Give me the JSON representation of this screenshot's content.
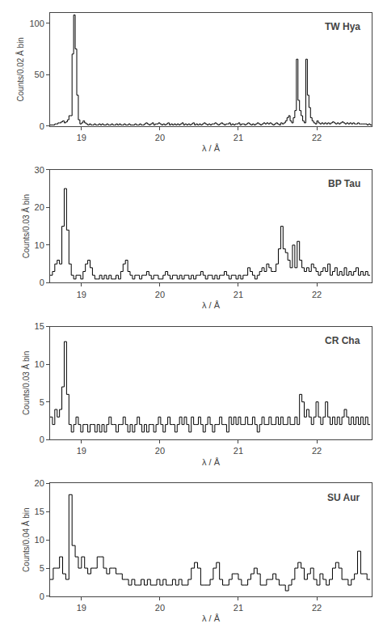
{
  "chart_data": [
    {
      "type": "histogram",
      "title": "TW Hya",
      "xlabel": "λ / Å",
      "ylabel": "Counts/0.02 Å bin",
      "color": "#000000",
      "grid": false,
      "xlim": [
        18.6,
        22.7
      ],
      "xticks": [
        19,
        20,
        21,
        22
      ],
      "ylim": [
        0,
        110
      ],
      "yticks": [
        0,
        50,
        100
      ],
      "bins": [
        18.6,
        18.62,
        18.64,
        18.66,
        18.68,
        18.7,
        18.72,
        18.74,
        18.76,
        18.78,
        18.8,
        18.82,
        18.84,
        18.86,
        18.88,
        18.9,
        18.92,
        18.94,
        18.96,
        18.98,
        19,
        19.02,
        19.04,
        19.06,
        19.08,
        19.1,
        19.12,
        19.14,
        19.16,
        19.18,
        19.2,
        19.22,
        19.24,
        19.26,
        19.28,
        19.3,
        19.32,
        19.34,
        19.36,
        19.38,
        19.4,
        19.42,
        19.44,
        19.46,
        19.48,
        19.5,
        19.52,
        19.54,
        19.56,
        19.58,
        19.6,
        19.62,
        19.64,
        19.66,
        19.68,
        19.7,
        19.72,
        19.74,
        19.76,
        19.78,
        19.8,
        19.82,
        19.84,
        19.86,
        19.88,
        19.9,
        19.92,
        19.94,
        19.96,
        19.98,
        20,
        20.02,
        20.04,
        20.06,
        20.08,
        20.1,
        20.12,
        20.14,
        20.16,
        20.18,
        20.2,
        20.22,
        20.24,
        20.26,
        20.28,
        20.3,
        20.32,
        20.34,
        20.36,
        20.38,
        20.4,
        20.42,
        20.44,
        20.46,
        20.48,
        20.5,
        20.52,
        20.54,
        20.56,
        20.58,
        20.6,
        20.62,
        20.64,
        20.66,
        20.68,
        20.7,
        20.72,
        20.74,
        20.76,
        20.78,
        20.8,
        20.82,
        20.84,
        20.86,
        20.88,
        20.9,
        20.92,
        20.94,
        20.96,
        20.98,
        21,
        21.02,
        21.04,
        21.06,
        21.08,
        21.1,
        21.12,
        21.14,
        21.16,
        21.18,
        21.2,
        21.22,
        21.24,
        21.26,
        21.28,
        21.3,
        21.32,
        21.34,
        21.36,
        21.38,
        21.4,
        21.42,
        21.44,
        21.46,
        21.48,
        21.5,
        21.52,
        21.54,
        21.56,
        21.58,
        21.6,
        21.62,
        21.64,
        21.66,
        21.68,
        21.7,
        21.72,
        21.74,
        21.76,
        21.78,
        21.8,
        21.82,
        21.84,
        21.86,
        21.88,
        21.9,
        21.92,
        21.94,
        21.96,
        21.98,
        22,
        22.02,
        22.04,
        22.06,
        22.08,
        22.1,
        22.12,
        22.14,
        22.16,
        22.18,
        22.2,
        22.22,
        22.24,
        22.26,
        22.28,
        22.3,
        22.32,
        22.34,
        22.36,
        22.38,
        22.4,
        22.42,
        22.44,
        22.46,
        22.48,
        22.5,
        22.52,
        22.54,
        22.56,
        22.58,
        22.6,
        22.62,
        22.64,
        22.66,
        22.68,
        22.7
      ],
      "values": [
        1,
        1,
        1,
        2,
        2,
        3,
        3,
        4,
        5,
        3,
        4,
        6,
        10,
        10,
        70,
        108,
        75,
        30,
        6,
        2,
        3,
        5,
        3,
        2,
        1,
        2,
        1,
        1,
        2,
        1,
        1,
        2,
        1,
        2,
        1,
        1,
        2,
        1,
        1,
        2,
        1,
        1,
        2,
        1,
        2,
        1,
        1,
        2,
        1,
        1,
        2,
        1,
        1,
        1,
        2,
        1,
        1,
        2,
        1,
        1,
        2,
        3,
        2,
        1,
        2,
        3,
        1,
        2,
        2,
        3,
        2,
        1,
        2,
        1,
        2,
        3,
        1,
        2,
        1,
        2,
        1,
        2,
        1,
        2,
        3,
        1,
        2,
        1,
        2,
        1,
        2,
        3,
        1,
        2,
        1,
        2,
        1,
        2,
        3,
        2,
        1,
        2,
        1,
        2,
        2,
        3,
        2,
        1,
        2,
        3,
        2,
        1,
        2,
        2,
        3,
        1,
        2,
        1,
        2,
        2,
        3,
        1,
        2,
        2,
        1,
        2,
        3,
        2,
        1,
        2,
        1,
        2,
        3,
        2,
        1,
        2,
        3,
        2,
        3,
        2,
        3,
        2,
        1,
        2,
        3,
        2,
        1,
        3,
        2,
        3,
        5,
        8,
        10,
        5,
        3,
        8,
        15,
        65,
        25,
        15,
        10,
        5,
        3,
        65,
        30,
        18,
        8,
        5,
        3,
        2,
        5,
        3,
        2,
        3,
        2,
        3,
        2,
        3,
        2,
        3,
        4,
        3,
        2,
        3,
        2,
        3,
        4,
        3,
        2,
        3,
        2,
        3,
        2,
        3,
        2,
        2,
        3,
        2,
        2,
        2,
        2,
        2,
        1,
        2,
        1
      ]
    },
    {
      "type": "histogram",
      "title": "BP Tau",
      "xlabel": "λ / Å",
      "ylabel": "Counts/0.03 Å bin",
      "color": "#000000",
      "grid": false,
      "xlim": [
        18.6,
        22.7
      ],
      "xticks": [
        19,
        20,
        21,
        22
      ],
      "ylim": [
        0,
        30
      ],
      "yticks": [
        0,
        10,
        20,
        30
      ],
      "bins": [
        18.6,
        18.63,
        18.66,
        18.69,
        18.72,
        18.75,
        18.78,
        18.81,
        18.84,
        18.87,
        18.9,
        18.93,
        18.96,
        18.99,
        19.02,
        19.05,
        19.08,
        19.11,
        19.14,
        19.17,
        19.2,
        19.23,
        19.26,
        19.29,
        19.32,
        19.35,
        19.38,
        19.41,
        19.44,
        19.47,
        19.5,
        19.53,
        19.56,
        19.59,
        19.62,
        19.65,
        19.68,
        19.71,
        19.74,
        19.77,
        19.8,
        19.83,
        19.86,
        19.89,
        19.92,
        19.95,
        19.98,
        20.01,
        20.04,
        20.07,
        20.1,
        20.13,
        20.16,
        20.19,
        20.22,
        20.25,
        20.28,
        20.31,
        20.34,
        20.37,
        20.4,
        20.43,
        20.46,
        20.49,
        20.52,
        20.55,
        20.58,
        20.61,
        20.64,
        20.67,
        20.7,
        20.73,
        20.76,
        20.79,
        20.82,
        20.85,
        20.88,
        20.91,
        20.94,
        20.97,
        21,
        21.03,
        21.06,
        21.09,
        21.12,
        21.15,
        21.18,
        21.21,
        21.24,
        21.27,
        21.3,
        21.33,
        21.36,
        21.39,
        21.42,
        21.45,
        21.48,
        21.51,
        21.54,
        21.57,
        21.6,
        21.63,
        21.66,
        21.69,
        21.72,
        21.75,
        21.78,
        21.81,
        21.84,
        21.87,
        21.9,
        21.93,
        21.96,
        21.99,
        22.02,
        22.05,
        22.08,
        22.11,
        22.14,
        22.17,
        22.2,
        22.23,
        22.26,
        22.29,
        22.32,
        22.35,
        22.38,
        22.41,
        22.44,
        22.47,
        22.5,
        22.53,
        22.56,
        22.59,
        22.62,
        22.65,
        22.68
      ],
      "values": [
        2,
        3,
        5,
        6,
        5,
        15,
        25,
        14,
        5,
        2,
        1,
        2,
        2,
        1,
        3,
        5,
        6,
        4,
        2,
        1,
        1,
        2,
        1,
        2,
        1,
        2,
        1,
        1,
        2,
        1,
        3,
        5,
        6,
        3,
        2,
        1,
        2,
        2,
        1,
        2,
        2,
        3,
        2,
        1,
        2,
        2,
        1,
        1,
        2,
        3,
        2,
        1,
        2,
        2,
        1,
        2,
        1,
        2,
        2,
        1,
        2,
        1,
        2,
        2,
        3,
        2,
        1,
        2,
        2,
        1,
        2,
        1,
        2,
        2,
        3,
        2,
        1,
        2,
        2,
        1,
        2,
        1,
        2,
        2,
        4,
        3,
        2,
        1,
        2,
        3,
        4,
        3,
        5,
        4,
        3,
        3,
        5,
        9,
        15,
        9,
        8,
        6,
        4,
        10,
        4,
        11,
        6,
        4,
        3,
        4,
        3,
        5,
        4,
        3,
        2,
        3,
        4,
        3,
        5,
        2,
        3,
        4,
        2,
        3,
        2,
        4,
        2,
        3,
        2,
        3,
        4,
        2,
        3,
        2,
        3,
        2
      ]
    },
    {
      "type": "histogram",
      "title": "CR Cha",
      "xlabel": "λ / Å",
      "ylabel": "Counts/0.03 Å bin",
      "color": "#000000",
      "grid": false,
      "xlim": [
        18.6,
        22.7
      ],
      "xticks": [
        19,
        20,
        21,
        22
      ],
      "ylim": [
        0,
        15
      ],
      "yticks": [
        0,
        5,
        10,
        15
      ],
      "bins": [
        18.6,
        18.63,
        18.66,
        18.69,
        18.72,
        18.75,
        18.78,
        18.81,
        18.84,
        18.87,
        18.9,
        18.93,
        18.96,
        18.99,
        19.02,
        19.05,
        19.08,
        19.11,
        19.14,
        19.17,
        19.2,
        19.23,
        19.26,
        19.29,
        19.32,
        19.35,
        19.38,
        19.41,
        19.44,
        19.47,
        19.5,
        19.53,
        19.56,
        19.59,
        19.62,
        19.65,
        19.68,
        19.71,
        19.74,
        19.77,
        19.8,
        19.83,
        19.86,
        19.89,
        19.92,
        19.95,
        19.98,
        20.01,
        20.04,
        20.07,
        20.1,
        20.13,
        20.16,
        20.19,
        20.22,
        20.25,
        20.28,
        20.31,
        20.34,
        20.37,
        20.4,
        20.43,
        20.46,
        20.49,
        20.52,
        20.55,
        20.58,
        20.61,
        20.64,
        20.67,
        20.7,
        20.73,
        20.76,
        20.79,
        20.82,
        20.85,
        20.88,
        20.91,
        20.94,
        20.97,
        21,
        21.03,
        21.06,
        21.09,
        21.12,
        21.15,
        21.18,
        21.21,
        21.24,
        21.27,
        21.3,
        21.33,
        21.36,
        21.39,
        21.42,
        21.45,
        21.48,
        21.51,
        21.54,
        21.57,
        21.6,
        21.63,
        21.66,
        21.69,
        21.72,
        21.75,
        21.78,
        21.81,
        21.84,
        21.87,
        21.9,
        21.93,
        21.96,
        21.99,
        22.02,
        22.05,
        22.08,
        22.11,
        22.14,
        22.17,
        22.2,
        22.23,
        22.26,
        22.29,
        22.32,
        22.35,
        22.38,
        22.41,
        22.44,
        22.47,
        22.5,
        22.53,
        22.56,
        22.59,
        22.62,
        22.65,
        22.68
      ],
      "values": [
        3,
        2,
        4,
        3,
        4,
        7,
        13,
        6,
        2,
        1,
        2,
        3,
        2,
        1,
        2,
        2,
        1,
        2,
        2,
        1,
        2,
        1,
        2,
        1,
        2,
        3,
        2,
        2,
        1,
        2,
        2,
        3,
        2,
        1,
        2,
        1,
        2,
        3,
        2,
        1,
        2,
        1,
        2,
        2,
        1,
        2,
        3,
        2,
        1,
        2,
        3,
        2,
        2,
        1,
        2,
        3,
        2,
        3,
        2,
        1,
        3,
        2,
        2,
        3,
        2,
        1,
        2,
        3,
        2,
        1,
        2,
        2,
        3,
        2,
        2,
        1,
        3,
        2,
        3,
        2,
        3,
        2,
        2,
        3,
        2,
        2,
        3,
        2,
        1,
        2,
        3,
        2,
        2,
        3,
        2,
        2,
        3,
        2,
        3,
        2,
        2,
        3,
        2,
        2,
        3,
        2,
        6,
        5,
        3,
        4,
        3,
        2,
        3,
        5,
        3,
        2,
        3,
        5,
        3,
        2,
        3,
        2,
        3,
        2,
        3,
        4,
        3,
        2,
        3,
        2,
        3,
        2,
        3,
        2,
        3,
        2
      ]
    },
    {
      "type": "histogram",
      "title": "SU Aur",
      "xlabel": "λ / Å",
      "ylabel": "Counts/0.04 Å bin",
      "color": "#000000",
      "grid": false,
      "xlim": [
        18.6,
        22.7
      ],
      "xticks": [
        19,
        20,
        21,
        22
      ],
      "ylim": [
        0,
        20
      ],
      "yticks": [
        0,
        5,
        10,
        15,
        20
      ],
      "bins": [
        18.6,
        18.64,
        18.68,
        18.72,
        18.76,
        18.8,
        18.84,
        18.88,
        18.92,
        18.96,
        19,
        19.04,
        19.08,
        19.12,
        19.16,
        19.2,
        19.24,
        19.28,
        19.32,
        19.36,
        19.4,
        19.44,
        19.48,
        19.52,
        19.56,
        19.6,
        19.64,
        19.68,
        19.72,
        19.76,
        19.8,
        19.84,
        19.88,
        19.92,
        19.96,
        20,
        20.04,
        20.08,
        20.12,
        20.16,
        20.2,
        20.24,
        20.28,
        20.32,
        20.36,
        20.4,
        20.44,
        20.48,
        20.52,
        20.56,
        20.6,
        20.64,
        20.68,
        20.72,
        20.76,
        20.8,
        20.84,
        20.88,
        20.92,
        20.96,
        21,
        21.04,
        21.08,
        21.12,
        21.16,
        21.2,
        21.24,
        21.28,
        21.32,
        21.36,
        21.4,
        21.44,
        21.48,
        21.52,
        21.56,
        21.6,
        21.64,
        21.68,
        21.72,
        21.76,
        21.8,
        21.84,
        21.88,
        21.92,
        21.96,
        22,
        22.04,
        22.08,
        22.12,
        22.16,
        22.2,
        22.24,
        22.28,
        22.32,
        22.36,
        22.4,
        22.44,
        22.48,
        22.52,
        22.56,
        22.6,
        22.64,
        22.68
      ],
      "values": [
        3,
        5,
        5,
        7,
        4,
        3,
        18,
        9,
        7,
        5,
        7,
        5,
        4,
        5,
        5,
        7,
        7,
        5,
        4,
        5,
        5,
        4,
        4,
        3,
        3,
        2,
        3,
        2,
        2,
        3,
        2,
        3,
        2,
        2,
        3,
        2,
        3,
        2,
        2,
        3,
        2,
        3,
        2,
        2,
        3,
        5,
        6,
        5,
        2,
        2,
        2,
        3,
        5,
        6,
        3,
        2,
        2,
        3,
        4,
        4,
        3,
        2,
        2,
        3,
        4,
        5,
        4,
        2,
        2,
        3,
        3,
        4,
        3,
        2,
        2,
        1,
        2,
        3,
        5,
        6,
        5,
        3,
        4,
        5,
        3,
        2,
        4,
        3,
        2,
        3,
        5,
        6,
        5,
        3,
        3,
        2,
        3,
        4,
        8,
        4,
        4,
        3
      ]
    }
  ]
}
